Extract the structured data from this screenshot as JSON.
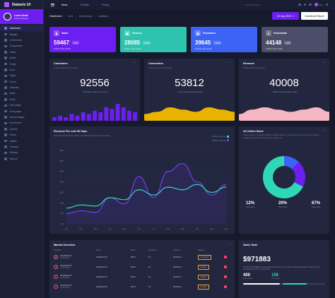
{
  "brand": {
    "name": "Dataviz UI"
  },
  "user": {
    "name": "Louis Scott",
    "role": "Sales Manager"
  },
  "sidebar": {
    "items": [
      {
        "label": "Dashboard"
      },
      {
        "label": "Widgets"
      },
      {
        "label": "UI Elements"
      },
      {
        "label": "Components"
      },
      {
        "label": "Tables"
      },
      {
        "label": "Media"
      },
      {
        "label": "Charts"
      },
      {
        "label": "Icons"
      },
      {
        "label": "Pages"
      },
      {
        "label": "Forms"
      },
      {
        "label": "Calendar"
      },
      {
        "label": "Maps"
      },
      {
        "label": "Email"
      },
      {
        "label": "User pages"
      },
      {
        "label": "Error pages"
      },
      {
        "label": "Account pages"
      },
      {
        "label": "Ecommerce"
      },
      {
        "label": "Layouts"
      },
      {
        "label": "Extras"
      },
      {
        "label": "Utilities"
      },
      {
        "label": "Contacts"
      },
      {
        "label": "Settings"
      },
      {
        "label": "Support"
      }
    ]
  },
  "topbar": {
    "nav": [
      "News",
      "Portfolio",
      "Pricing"
    ],
    "search_placeholder": "Search a word",
    "user_short": "Bob"
  },
  "breadcrumb": [
    "Dashboard",
    "Ana",
    "Dashboard",
    "Analytics"
  ],
  "actions": {
    "date": "02 Aug 2019",
    "download": "Download Report"
  },
  "stats": [
    {
      "label": "Sales",
      "value": "59467",
      "pct": "+9.4",
      "sub": "Total for this month",
      "color": "#6c1ff0"
    },
    {
      "label": "Returns",
      "value": "28085",
      "pct": "+17.3",
      "sub": "Total for this month",
      "color": "#2dc3ae"
    },
    {
      "label": "Purchases",
      "value": "39645",
      "pct": "+21.5",
      "sub": "Total for this month",
      "color": "#3d63f6"
    },
    {
      "label": "Downloads",
      "value": "44148",
      "pct": "+9.8",
      "sub": "Total for this month",
      "color": "#4a4e68"
    }
  ],
  "customers": {
    "title": "Customers",
    "sub": "Total customers this month",
    "value": "92556",
    "change": "1.33",
    "change_text": "More than last month",
    "bars": [
      2,
      3,
      2,
      4,
      3,
      5,
      4,
      6,
      5,
      8,
      7,
      10,
      8,
      6,
      5
    ]
  },
  "conversion": {
    "title": "Conversion",
    "sub": "Your conversion this month",
    "value": "53812",
    "change": "8.17",
    "change_text": "Less than last month",
    "wave": [
      3,
      4,
      6,
      5,
      4,
      6,
      5,
      4
    ]
  },
  "revenue": {
    "title": "Revenue",
    "sub": "Total revenue this month",
    "value": "40008",
    "change": "0.36",
    "change_text": "Less than last month",
    "wave": [
      3,
      5,
      6,
      5,
      4,
      5,
      6,
      4
    ]
  },
  "revenue30": {
    "title": "Revenue For Last 30 Days",
    "subtitle": "Sales Performance for Online and Offline Revenue Last 30 days",
    "legend": [
      "Online revenue",
      "Offline revenue"
    ],
    "colors": {
      "online": "#2ed8b6",
      "offline": "#7b3af5"
    },
    "yticks": [
      "1800",
      "1600",
      "1400",
      "1200",
      "1000",
      "800",
      "600",
      "400"
    ],
    "xticks": [
      "Jan",
      "Feb",
      "Mar",
      "Apr",
      "May",
      "Jun",
      "Jul",
      "Aug",
      "Sep",
      "Oct",
      "Nov",
      "Dec"
    ],
    "online": [
      700,
      760,
      740,
      900,
      860,
      1050,
      950,
      1100,
      1050,
      1150,
      1000,
      1100
    ],
    "offline": [
      600,
      650,
      620,
      900,
      780,
      1300,
      900,
      1400,
      1550,
      1200,
      950,
      1150
    ]
  },
  "online_sales": {
    "title": "All Online Sales",
    "desc": [
      "Total number of sessions within the date range. It is the period",
      "of time a user is actively engaged with your website, page or app, etc."
    ],
    "slices": [
      {
        "label": "Total sales",
        "value": 12,
        "display": "12%",
        "color": "#3d63f6"
      },
      {
        "label": "Total sales",
        "value": 20,
        "display": "20%",
        "color": "#6c1ff0"
      },
      {
        "label": "Total sales",
        "value": 67,
        "display": "67%",
        "color": "#2ed8b6"
      }
    ]
  },
  "market": {
    "title": "Market Overview",
    "columns": [
      "Product",
      "Type",
      "SKU",
      "Quantity",
      "Amount",
      "Status"
    ],
    "rows": [
      {
        "name": "SNKDE1513",
        "date": "24 Mar 2019",
        "type": "#AD5E3715",
        "sku": "6B74",
        "qty": "51",
        "amount": "$1099.21",
        "status": "Completed"
      },
      {
        "name": "SNKDE1513",
        "date": "24 Mar 2019",
        "type": "#AD5E3715",
        "sku": "6B74",
        "qty": "51",
        "amount": "$1099.21",
        "status": "Pending"
      },
      {
        "name": "SNKDE1513",
        "date": "24 Mar 2019",
        "type": "#AD5E3715",
        "sku": "6B74",
        "qty": "51",
        "amount": "$1099.21",
        "status": "Shipped"
      },
      {
        "name": "SNKDE1513",
        "date": "24 Mar 2019",
        "type": "#AD5E3715",
        "sku": "6B74",
        "qty": "51",
        "amount": "$1099.21",
        "status": "Pending"
      }
    ]
  },
  "sales_total": {
    "title": "Sales Total",
    "value": "$971883",
    "desc": "The Recent Installation accelerated the increase of the number of domestic sales in 2019, proving the importance of our e-commerce",
    "blocks": [
      {
        "value": "400",
        "label": "Last month",
        "color": "#fff"
      },
      {
        "value": "159",
        "label": "Last week",
        "color": "#2ed8b6"
      }
    ],
    "progress": {
      "a": 0.45,
      "b": 0.3
    }
  }
}
